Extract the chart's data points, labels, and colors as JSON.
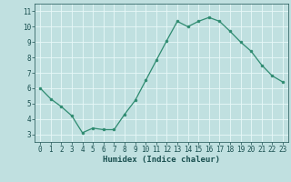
{
  "x": [
    0,
    1,
    2,
    3,
    4,
    5,
    6,
    7,
    8,
    9,
    10,
    11,
    12,
    13,
    14,
    15,
    16,
    17,
    18,
    19,
    20,
    21,
    22,
    23
  ],
  "y": [
    6.0,
    5.3,
    4.8,
    4.2,
    3.1,
    3.4,
    3.3,
    3.3,
    4.3,
    5.2,
    6.5,
    7.8,
    9.1,
    10.35,
    10.0,
    10.35,
    10.6,
    10.35,
    9.7,
    9.0,
    8.4,
    7.5,
    6.8,
    6.4
  ],
  "line_color": "#2e8b70",
  "marker": "o",
  "marker_size": 2.0,
  "bg_color": "#c0e0e0",
  "grid_color": "#e8f8f8",
  "xlabel": "Humidex (Indice chaleur)",
  "ylim": [
    2.5,
    11.5
  ],
  "xlim": [
    -0.5,
    23.5
  ],
  "yticks": [
    3,
    4,
    5,
    6,
    7,
    8,
    9,
    10,
    11
  ],
  "xticks": [
    0,
    1,
    2,
    3,
    4,
    5,
    6,
    7,
    8,
    9,
    10,
    11,
    12,
    13,
    14,
    15,
    16,
    17,
    18,
    19,
    20,
    21,
    22,
    23
  ],
  "font_color": "#1a5050",
  "xlabel_fontsize": 6.5,
  "tick_fontsize": 5.5,
  "linewidth": 0.9
}
